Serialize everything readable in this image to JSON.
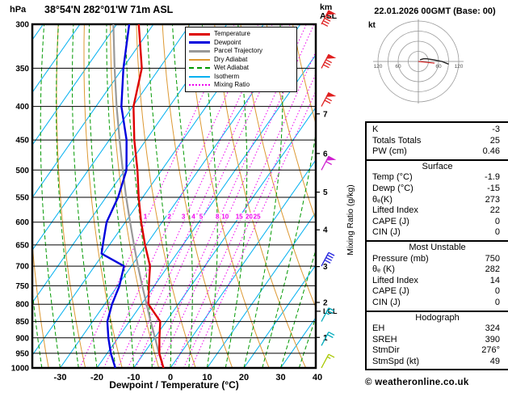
{
  "header": {
    "pressure_unit": "hPa",
    "station_title": "38°54'N 282°01'W 71m ASL",
    "altitude_unit_top": "km",
    "altitude_unit_bottom": "ASL",
    "run_label": "22.01.2026 00GMT (Base: 00)"
  },
  "legend": {
    "items": [
      {
        "label": "Temperature",
        "color": "#dd0000",
        "style": "solid",
        "thick": true
      },
      {
        "label": "Dewpoint",
        "color": "#0000dd",
        "style": "solid",
        "thick": true
      },
      {
        "label": "Parcel Trajectory",
        "color": "#999999",
        "style": "solid",
        "thick": true
      },
      {
        "label": "Dry Adiabat",
        "color": "#dd9933",
        "style": "solid",
        "thick": false
      },
      {
        "label": "Wet Adiabat",
        "color": "#009900",
        "style": "dashed",
        "thick": false
      },
      {
        "label": "Isotherm",
        "color": "#00b0f0",
        "style": "solid",
        "thick": false
      },
      {
        "label": "Mixing Ratio",
        "color": "#ee00ee",
        "style": "dotted",
        "thick": false
      }
    ]
  },
  "chart_data": {
    "type": "skewt_log_p",
    "title": "38°54'N 282°01'W 71m ASL",
    "x_axis_label": "Dewpoint / Temperature (°C)",
    "mixing_ratio_axis_label": "Mixing Ratio (g/kg)",
    "lcl_label": "LCL",
    "lcl_pressure_hpa": 820,
    "pressure_axis": {
      "unit": "hPa",
      "scale": "log",
      "range": [
        300,
        1000
      ],
      "ticks": [
        300,
        350,
        400,
        450,
        500,
        550,
        600,
        650,
        700,
        750,
        800,
        850,
        900,
        950,
        1000
      ]
    },
    "temperature_axis": {
      "unit": "°C",
      "range": [
        -30,
        40
      ],
      "ticks": [
        -30,
        -20,
        -10,
        0,
        10,
        20,
        30,
        40
      ]
    },
    "altitude_axis_km": [
      1,
      2,
      3,
      4,
      5,
      6,
      7
    ],
    "mixing_ratio_lines_g_kg": [
      1,
      2,
      3,
      4,
      5,
      8,
      10,
      15,
      20,
      25
    ],
    "series": [
      {
        "name": "Temperature",
        "color": "#dd0000",
        "points": [
          [
            1000,
            -1.9
          ],
          [
            950,
            -5.8
          ],
          [
            900,
            -8.7
          ],
          [
            850,
            -11.6
          ],
          [
            800,
            -18.1
          ],
          [
            750,
            -21.5
          ],
          [
            700,
            -24.9
          ],
          [
            650,
            -30.3
          ],
          [
            600,
            -35.7
          ],
          [
            550,
            -41.1
          ],
          [
            500,
            -46.6
          ],
          [
            450,
            -53.2
          ],
          [
            400,
            -59.8
          ],
          [
            350,
            -64.8
          ],
          [
            300,
            -74
          ]
        ]
      },
      {
        "name": "Dewpoint",
        "color": "#0000dd",
        "points": [
          [
            1000,
            -15
          ],
          [
            950,
            -19
          ],
          [
            900,
            -22.6
          ],
          [
            850,
            -26
          ],
          [
            800,
            -28
          ],
          [
            750,
            -29.5
          ],
          [
            700,
            -32
          ],
          [
            670,
            -40.5
          ],
          [
            650,
            -41.8
          ],
          [
            600,
            -45.1
          ],
          [
            550,
            -46.7
          ],
          [
            500,
            -49.6
          ],
          [
            450,
            -55.3
          ],
          [
            400,
            -63.1
          ],
          [
            350,
            -69.8
          ],
          [
            300,
            -76.6
          ]
        ]
      },
      {
        "name": "Parcel Trajectory",
        "color": "#999999",
        "points": [
          [
            1000,
            -1.9
          ],
          [
            950,
            -5.9
          ],
          [
            900,
            -9.9
          ],
          [
            850,
            -14.2
          ],
          [
            800,
            -18.6
          ],
          [
            750,
            -23.3
          ],
          [
            700,
            -28.2
          ],
          [
            650,
            -33.3
          ],
          [
            600,
            -38.7
          ],
          [
            550,
            -44.5
          ],
          [
            500,
            -50.6
          ],
          [
            450,
            -57.2
          ],
          [
            400,
            -64.4
          ],
          [
            350,
            -72.2
          ],
          [
            300,
            -80.9
          ]
        ]
      }
    ],
    "wind_barbs": [
      {
        "pressure": 300,
        "speed_kt": 90,
        "color": "#e02020"
      },
      {
        "pressure": 350,
        "speed_kt": 80,
        "color": "#e02020"
      },
      {
        "pressure": 400,
        "speed_kt": 70,
        "color": "#e02020"
      },
      {
        "pressure": 500,
        "speed_kt": 60,
        "color": "#d020d0"
      },
      {
        "pressure": 700,
        "speed_kt": 40,
        "color": "#2020dd"
      },
      {
        "pressure": 850,
        "speed_kt": 25,
        "color": "#00aabb"
      },
      {
        "pressure": 925,
        "speed_kt": 20,
        "color": "#00aabb"
      },
      {
        "pressure": 1000,
        "speed_kt": 15,
        "color": "#a8c800"
      }
    ],
    "hodograph": {
      "unit_label": "kt",
      "rings_kt": [
        30,
        60,
        90,
        120
      ],
      "axis_labels_kt": [
        60,
        120
      ],
      "trace_uv_kt": [
        [
          5,
          5
        ],
        [
          15,
          8
        ],
        [
          25,
          8
        ],
        [
          45,
          5
        ],
        [
          70,
          0
        ],
        [
          90,
          -8
        ]
      ],
      "storm_motion_uv_kt": [
        48,
        -5
      ]
    }
  },
  "table": {
    "rows_top": [
      [
        "K",
        "-3"
      ],
      [
        "Totals Totals",
        "25"
      ],
      [
        "PW (cm)",
        "0.46"
      ]
    ],
    "sections": [
      {
        "title": "Surface",
        "rows": [
          [
            "Temp (°C)",
            "-1.9"
          ],
          [
            "Dewp (°C)",
            "-15"
          ],
          [
            "θₑ(K)",
            "273"
          ],
          [
            "Lifted Index",
            "22"
          ],
          [
            "CAPE (J)",
            "0"
          ],
          [
            "CIN (J)",
            "0"
          ]
        ]
      },
      {
        "title": "Most Unstable",
        "rows": [
          [
            "Pressure (mb)",
            "750"
          ],
          [
            "θₑ (K)",
            "282"
          ],
          [
            "Lifted Index",
            "14"
          ],
          [
            "CAPE (J)",
            "0"
          ],
          [
            "CIN (J)",
            "0"
          ]
        ]
      },
      {
        "title": "Hodograph",
        "rows": [
          [
            "EH",
            "324"
          ],
          [
            "SREH",
            "390"
          ],
          [
            "StmDir",
            "276°"
          ],
          [
            "StmSpd (kt)",
            "49"
          ]
        ]
      }
    ]
  },
  "footer": {
    "credit": "© weatheronline.co.uk"
  }
}
